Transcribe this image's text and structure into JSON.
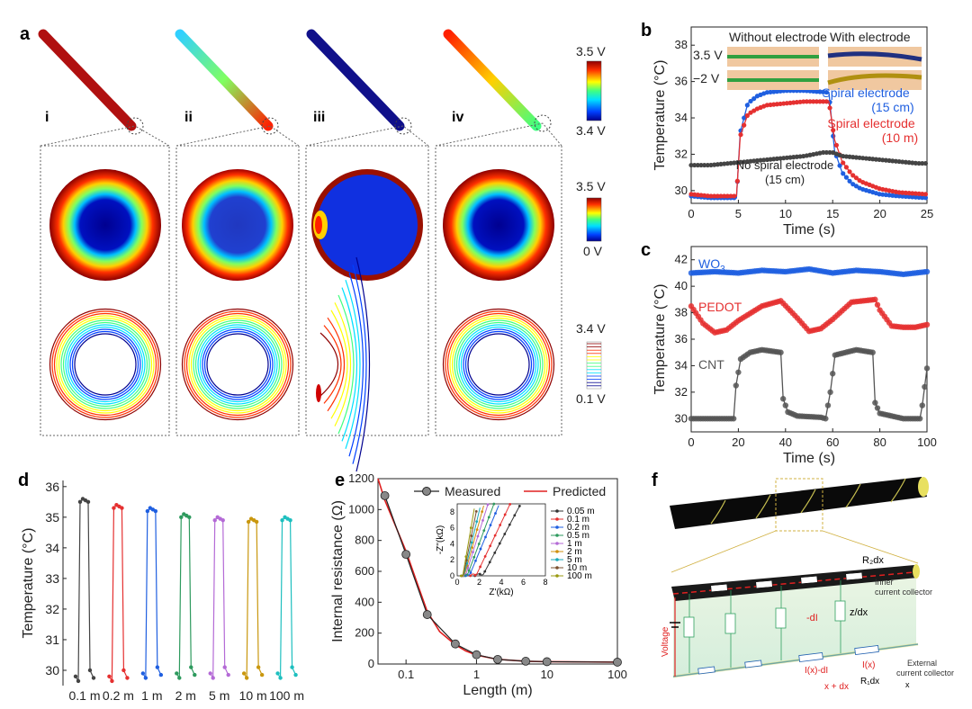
{
  "panels": {
    "a": "a",
    "b": "b",
    "c": "c",
    "d": "d",
    "e": "e",
    "f": "f"
  },
  "panel_a": {
    "columns": [
      "i",
      "ii",
      "iii",
      "iv"
    ],
    "cb_top": {
      "max": "3.5 V",
      "min": "3.4 V"
    },
    "cb_mid": {
      "max": "3.5 V",
      "min": "0 V"
    },
    "cb_bot": {
      "max": "3.4 V",
      "min": "0.1 V"
    }
  },
  "chart_data": [
    {
      "id": "b",
      "type": "line",
      "xlabel": "Time (s)",
      "ylabel": "Temperature (°C)",
      "xlim": [
        0,
        25
      ],
      "ylim": [
        29.3,
        39
      ],
      "xticks": [
        "0",
        "5",
        "10",
        "15",
        "20",
        "25"
      ],
      "yticks": [
        "30",
        "32",
        "34",
        "36",
        "38"
      ],
      "inset_labels": {
        "left": "Without electrode",
        "right": "With electrode",
        "v_hi": "3.5 V",
        "v_lo": "−2 V"
      },
      "series": [
        {
          "name": "Spiral electrode (15 cm)",
          "color": "#1f5fe0",
          "x": [
            0,
            2,
            4.8,
            5.2,
            6,
            7,
            8,
            10,
            12,
            14.6,
            15.2,
            16,
            17,
            18,
            20,
            22,
            25
          ],
          "y": [
            29.7,
            29.6,
            29.6,
            33.2,
            34.8,
            35.2,
            35.4,
            35.5,
            35.5,
            35.4,
            32.2,
            31.0,
            30.4,
            30.1,
            29.8,
            29.7,
            29.6
          ]
        },
        {
          "name": "Spiral electrode (10 m)",
          "color": "#e53030",
          "x": [
            0,
            2,
            4.8,
            5.2,
            6,
            7,
            8,
            10,
            12,
            14.6,
            15.2,
            16,
            17,
            18,
            20,
            22,
            25
          ],
          "y": [
            29.8,
            29.7,
            29.7,
            33.0,
            34.2,
            34.5,
            34.7,
            34.8,
            34.9,
            34.9,
            32.8,
            31.6,
            30.9,
            30.5,
            30.1,
            29.9,
            29.8
          ]
        },
        {
          "name": "No spiral electrode (15 cm)",
          "color": "#444444",
          "x": [
            0,
            2,
            4,
            6,
            8,
            10,
            12,
            14,
            15,
            16,
            18,
            20,
            22,
            24,
            25
          ],
          "y": [
            31.4,
            31.4,
            31.5,
            31.6,
            31.7,
            31.8,
            31.9,
            32.1,
            32.1,
            31.9,
            31.8,
            31.7,
            31.6,
            31.5,
            31.5
          ]
        }
      ],
      "legend_text": {
        "s1a": "Spiral electrode",
        "s1b": "(15 cm)",
        "s2a": "Spiral electrode",
        "s2b": "(10 m)",
        "s3a": "No spiral electrode",
        "s3b": "(15 cm)"
      }
    },
    {
      "id": "c",
      "type": "line",
      "xlabel": "Time (s)",
      "ylabel": "Temperature (°C)",
      "xlim": [
        0,
        100
      ],
      "ylim": [
        29,
        43
      ],
      "xticks": [
        "0",
        "20",
        "40",
        "60",
        "80",
        "100"
      ],
      "yticks": [
        "30",
        "32",
        "34",
        "36",
        "38",
        "40",
        "42"
      ],
      "series": [
        {
          "name": "WO3",
          "label_main": "WO",
          "label_sub": "3",
          "color": "#1f5fe0",
          "x": [
            0,
            10,
            20,
            30,
            40,
            50,
            60,
            70,
            80,
            90,
            100
          ],
          "y": [
            41.0,
            41.1,
            41.0,
            41.2,
            41.1,
            41.3,
            41.0,
            41.2,
            41.1,
            40.9,
            41.1
          ]
        },
        {
          "name": "PEDOT",
          "color": "#e53030",
          "x": [
            0,
            5,
            10,
            15,
            20,
            30,
            38,
            45,
            50,
            55,
            60,
            68,
            78,
            80,
            85,
            90,
            95,
            100
          ],
          "y": [
            38.5,
            37.2,
            36.5,
            36.7,
            37.4,
            38.5,
            38.9,
            37.6,
            36.6,
            36.8,
            37.5,
            38.8,
            39.0,
            38.2,
            37.0,
            36.9,
            36.9,
            37.1
          ]
        },
        {
          "name": "CNT",
          "color": "#555555",
          "x": [
            0,
            10,
            18,
            19,
            21,
            25,
            30,
            38,
            39,
            41,
            45,
            55,
            57,
            59,
            61,
            70,
            77,
            78,
            80,
            90,
            97,
            98,
            100
          ],
          "y": [
            30.0,
            30.0,
            30.0,
            32.5,
            34.5,
            35.0,
            35.2,
            35.0,
            31.5,
            30.5,
            30.2,
            30.1,
            30.0,
            32.0,
            34.8,
            35.2,
            35.0,
            31.2,
            30.4,
            30.0,
            30.0,
            31.0,
            33.8
          ]
        }
      ]
    },
    {
      "id": "d",
      "type": "line",
      "ylabel": "Temperature (°C)",
      "ylim": [
        29.5,
        36.2
      ],
      "yticks": [
        "30",
        "31",
        "32",
        "33",
        "34",
        "35",
        "36"
      ],
      "categories": [
        "0.1 m",
        "0.2 m",
        "1 m",
        "2 m",
        "5 m",
        "10 m",
        "100 m"
      ],
      "colors": [
        "#444444",
        "#e53030",
        "#1f5fe0",
        "#2e9a5e",
        "#b46ad6",
        "#c9970e",
        "#1ebfbf"
      ],
      "peaks": [
        35.6,
        35.4,
        35.3,
        35.1,
        35.0,
        34.95,
        35.0
      ],
      "bases": [
        29.7,
        29.7,
        29.8,
        29.8,
        29.8,
        29.8,
        29.8
      ]
    },
    {
      "id": "e",
      "type": "line",
      "xlabel": "Length (m)",
      "ylabel": "Internal resistance (Ω)",
      "xscale": "log",
      "xlim": [
        0.04,
        100
      ],
      "ylim": [
        0,
        1200
      ],
      "xticks": [
        "0.1",
        "1",
        "10",
        "100"
      ],
      "yticks": [
        "0",
        "200",
        "400",
        "600",
        "800",
        "1000",
        "1200"
      ],
      "series": [
        {
          "name": "Measured",
          "color": "#222222",
          "x": [
            0.05,
            0.1,
            0.2,
            0.5,
            1,
            2,
            5,
            10,
            100
          ],
          "y": [
            1090,
            710,
            320,
            130,
            60,
            30,
            18,
            15,
            12
          ]
        },
        {
          "name": "Predicted",
          "color": "#e02020",
          "x": [
            0.04,
            0.05,
            0.07,
            0.1,
            0.15,
            0.2,
            0.3,
            0.5,
            0.7,
            1,
            2,
            5,
            10,
            100
          ],
          "y": [
            1200,
            1060,
            900,
            730,
            500,
            340,
            210,
            125,
            85,
            58,
            30,
            18,
            15,
            12
          ]
        }
      ],
      "inset": {
        "xlabel": "Z'(kΩ)",
        "ylabel": "-Z''(kΩ)",
        "xlim": [
          0,
          8
        ],
        "ylim": [
          0,
          9
        ],
        "xticks": [
          "0",
          "2",
          "4",
          "6",
          "8"
        ],
        "yticks": [
          "0",
          "2",
          "4",
          "6",
          "8"
        ],
        "series": [
          {
            "name": "0.05 m",
            "color": "#333333",
            "x0": 2.3,
            "slope": 2.6
          },
          {
            "name": "0.1 m",
            "color": "#e53030",
            "x0": 1.7,
            "slope": 2.9
          },
          {
            "name": "0.2 m",
            "color": "#1f5fe0",
            "x0": 1.1,
            "slope": 3.3
          },
          {
            "name": "0.5 m",
            "color": "#2e9a5e",
            "x0": 0.9,
            "slope": 3.7
          },
          {
            "name": "1 m",
            "color": "#b46ad6",
            "x0": 0.75,
            "slope": 4.4
          },
          {
            "name": "2 m",
            "color": "#d09010",
            "x0": 0.65,
            "slope": 5.0
          },
          {
            "name": "5 m",
            "color": "#17a8b8",
            "x0": 0.6,
            "slope": 5.8
          },
          {
            "name": "10 m",
            "color": "#7a5030",
            "x0": 0.55,
            "slope": 6.8
          },
          {
            "name": "100 m",
            "color": "#9a9a10",
            "x0": 0.5,
            "slope": 8.0
          }
        ]
      }
    }
  ],
  "panel_f": {
    "r2": "R₂dx",
    "inner": "Inner",
    "inner2": "current collector",
    "voltage": "Voltage",
    "dI": "-dI",
    "z": "z/dx",
    "ixdi": "I(x)-dI",
    "ix": "I(x)",
    "xdx": "x + dx",
    "r1": "R₁dx",
    "external": "External",
    "external2": "current collector",
    "x": "x"
  }
}
